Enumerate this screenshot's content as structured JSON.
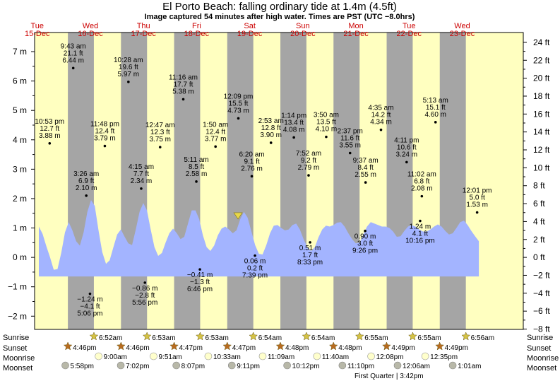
{
  "chart_data": {
    "type": "area",
    "title": "El Porto Beach: falling  ordinary tide at 1.4m (4.5ft)",
    "subtitle": "Image captured 54 minutes after high water. Times are PST (UTC −8.0hrs)",
    "xlim": [
      -0.83,
      8.37
    ],
    "ylim_m": [
      -2.45,
      7.65
    ],
    "ylim_ft": [
      -8,
      24
    ],
    "left_ticks": [
      "−2 m",
      "−1 m",
      "0 m",
      "1 m",
      "2 m",
      "3 m",
      "4 m",
      "5 m",
      "6 m",
      "7 m"
    ],
    "left_tick_values": [
      -2,
      -1,
      0,
      1,
      2,
      3,
      4,
      5,
      6,
      7
    ],
    "right_ticks": [
      "−8 ft",
      "−6 ft",
      "−4 ft",
      "−2 ft",
      "0 ft",
      "2 ft",
      "4 ft",
      "6 ft",
      "8 ft",
      "10 ft",
      "12 ft",
      "14 ft",
      "16 ft",
      "18 ft",
      "20 ft",
      "22 ft",
      "24 ft"
    ],
    "right_tick_values": [
      -8,
      -6,
      -4,
      -2,
      0,
      2,
      4,
      6,
      8,
      10,
      12,
      14,
      16,
      18,
      20,
      22,
      24
    ],
    "days": [
      {
        "name": "Tue",
        "date": "15-Dec"
      },
      {
        "name": "Wed",
        "date": "16-Dec"
      },
      {
        "name": "Thu",
        "date": "17-Dec"
      },
      {
        "name": "Fri",
        "date": "18-Dec"
      },
      {
        "name": "Sat",
        "date": "19-Dec"
      },
      {
        "name": "Sun",
        "date": "20-Dec"
      },
      {
        "name": "Mon",
        "date": "21-Dec"
      },
      {
        "name": "Tue",
        "date": "22-Dec"
      },
      {
        "name": "Wed",
        "date": "23-Dec"
      }
    ],
    "day_night": [
      {
        "sunrise": -1,
        "sunset": -0.2035
      },
      {
        "sunrise": 0.2861,
        "sunset": 0.7958
      },
      {
        "sunrise": 1.2868,
        "sunset": 1.7965
      },
      {
        "sunrise": 2.2868,
        "sunset": 2.7965
      },
      {
        "sunrise": 3.2875,
        "sunset": 3.7972
      },
      {
        "sunrise": 4.2875,
        "sunset": 4.7972
      },
      {
        "sunrise": 5.2882,
        "sunset": 5.7979
      },
      {
        "sunrise": 6.2882,
        "sunset": 6.7979
      },
      {
        "sunrise": 7.2889,
        "sunset": 8.5
      }
    ],
    "tide_range": [
      -0.65,
      7.5
    ],
    "now": {
      "t": 3.0,
      "h": 1.4
    },
    "extremes": [
      {
        "t": -0.547,
        "h": 3.88,
        "time": "10:53 pm",
        "ft": "12.7 ft",
        "m": "3.88 m",
        "kind": "H"
      },
      {
        "t": 0.143,
        "h": 2.1,
        "time": "3:26 am",
        "ft": "6.9 ft",
        "m": "2.10 m",
        "kind": "H"
      },
      {
        "t": -0.103,
        "h": 6.44,
        "time": "9:43 am",
        "ft": "21.1 ft",
        "m": "6.44 m",
        "kind": "H"
      },
      {
        "t": 0.213,
        "h": -1.24,
        "time": "5:06 pm",
        "ft": "−4.1 ft",
        "m": "−1.24 m",
        "kind": "L"
      },
      {
        "t": 0.492,
        "h": 3.79,
        "time": "11:48 pm",
        "ft": "12.4 ft",
        "m": "3.79 m",
        "kind": "H"
      },
      {
        "t": 1.177,
        "h": 2.34,
        "time": "4:15 am",
        "ft": "7.7 ft",
        "m": "2.34 m",
        "kind": "H"
      },
      {
        "t": 0.936,
        "h": 5.97,
        "time": "10:28 am",
        "ft": "19.6 ft",
        "m": "5.97 m",
        "kind": "H"
      },
      {
        "t": 1.247,
        "h": -0.86,
        "time": "5:56 pm",
        "ft": "−2.8 ft",
        "m": "−0.86 m",
        "kind": "L"
      },
      {
        "t": 1.533,
        "h": 3.75,
        "time": "12:47 am",
        "ft": "12.3 ft",
        "m": "3.75 m",
        "kind": "H"
      },
      {
        "t": 2.215,
        "h": 2.58,
        "time": "5:11 am",
        "ft": "8.5 ft",
        "m": "2.58 m",
        "kind": "H"
      },
      {
        "t": 1.969,
        "h": 5.38,
        "time": "11:16 am",
        "ft": "17.7 ft",
        "m": "5.38 m",
        "kind": "H"
      },
      {
        "t": 2.282,
        "h": -0.41,
        "time": "6:46 pm",
        "ft": "−1.3 ft",
        "m": "−0.41 m",
        "kind": "L"
      },
      {
        "t": 2.576,
        "h": 3.77,
        "time": "1:50 am",
        "ft": "12.4 ft",
        "m": "3.77 m",
        "kind": "H"
      },
      {
        "t": 3.259,
        "h": 2.76,
        "time": "6:20 am",
        "ft": "9.1 ft",
        "m": "2.76 m",
        "kind": "H"
      },
      {
        "t": 3.006,
        "h": 4.73,
        "time": "12:09 pm",
        "ft": "15.5 ft",
        "m": "4.73 m",
        "kind": "H"
      },
      {
        "t": 3.319,
        "h": 0.06,
        "time": "7:39 pm",
        "ft": "0.2 ft",
        "m": "0.06 m",
        "kind": "L"
      },
      {
        "t": 3.62,
        "h": 3.9,
        "time": "2:53 am",
        "ft": "12.8 ft",
        "m": "3.90 m",
        "kind": "H"
      },
      {
        "t": 4.328,
        "h": 2.79,
        "time": "7:52 am",
        "ft": "9.2 ft",
        "m": "2.79 m",
        "kind": "H"
      },
      {
        "t": 4.051,
        "h": 4.08,
        "time": "1:14 pm",
        "ft": "13.4 ft",
        "m": "4.08 m",
        "kind": "H"
      },
      {
        "t": 4.356,
        "h": 0.51,
        "time": "8:33 pm",
        "ft": "1.7 ft",
        "m": "0.51 m",
        "kind": "L"
      },
      {
        "t": 4.66,
        "h": 4.1,
        "time": "3:50 am",
        "ft": "13.5 ft",
        "m": "4.10 m",
        "kind": "H"
      },
      {
        "t": 5.401,
        "h": 2.55,
        "time": "9:37 am",
        "ft": "8.4 ft",
        "m": "2.55 m",
        "kind": "H"
      },
      {
        "t": 5.109,
        "h": 3.55,
        "time": "2:37 pm",
        "ft": "11.6 ft",
        "m": "3.55 m",
        "kind": "H"
      },
      {
        "t": 5.393,
        "h": 0.9,
        "time": "9:26 pm",
        "ft": "3.0 ft",
        "m": "0.90 m",
        "kind": "L"
      },
      {
        "t": 5.691,
        "h": 4.34,
        "time": "4:35 am",
        "ft": "14.2 ft",
        "m": "4.34 m",
        "kind": "H"
      },
      {
        "t": 6.46,
        "h": 2.08,
        "time": "11:02 am",
        "ft": "6.8 ft",
        "m": "2.08 m",
        "kind": "H"
      },
      {
        "t": 6.174,
        "h": 3.24,
        "time": "4:11 pm",
        "ft": "10.6 ft",
        "m": "3.24 m",
        "kind": "H"
      },
      {
        "t": 6.428,
        "h": 1.24,
        "time": "10:16 pm",
        "ft": "4.1 ft",
        "m": "1.24 m",
        "kind": "L"
      },
      {
        "t": 6.718,
        "h": 4.6,
        "time": "5:13 am",
        "ft": "15.1 ft",
        "m": "4.60 m",
        "kind": "H"
      },
      {
        "t": 7.501,
        "h": 1.53,
        "time": "12:01 pm",
        "ft": "5.0 ft",
        "m": "1.53 m",
        "kind": "H"
      }
    ],
    "curve_h": [
      1.05,
      0.8,
      0.38,
      0.0,
      -0.42,
      -0.4,
      0.15,
      0.85,
      1.2,
      0.92,
      0.55,
      0.4,
      0.85,
      1.55,
      1.95,
      1.75,
      0.92,
      0.18,
      -0.22,
      -0.1,
      0.35,
      0.78,
      0.95,
      0.7,
      0.48,
      0.42,
      0.95,
      1.55,
      1.85,
      1.6,
      0.95,
      0.35,
      0.05,
      0.15,
      0.5,
      0.82,
      0.98,
      0.82,
      0.62,
      0.7,
      1.15,
      1.6,
      1.6,
      1.3,
      0.75,
      0.35,
      0.22,
      0.4,
      0.75,
      0.98,
      1.05,
      0.95,
      0.82,
      0.92,
      1.3,
      1.55,
      1.35,
      0.88,
      0.42,
      0.12,
      0.1,
      0.42,
      0.82,
      1.08,
      1.1,
      1.0,
      0.92,
      0.95,
      1.1,
      1.15,
      0.95,
      0.62,
      0.35,
      0.22,
      0.35,
      0.68,
      0.95,
      1.08,
      1.05,
      1.1,
      1.18,
      1.2,
      1.05,
      0.82,
      0.62,
      0.48,
      0.5,
      0.78,
      1.05,
      1.2,
      1.15,
      1.1,
      1.05,
      1.05,
      1.0,
      0.88,
      0.7,
      0.72,
      0.9,
      1.05,
      1.1,
      1.05,
      0.95,
      0.88,
      0.88,
      0.95,
      1.05,
      1.12,
      1.05,
      0.9,
      0.78,
      0.82,
      1.0,
      1.2,
      1.25,
      1.1,
      0.9,
      0.72,
      0.55
    ],
    "curve_t0": -0.75,
    "curve_step": 0.0702,
    "sunrise_times": [
      "6:52am",
      "6:53am",
      "6:53am",
      "6:54am",
      "6:54am",
      "6:55am",
      "6:55am",
      "6:56am"
    ],
    "sunset_times": [
      "4:46pm",
      "4:46pm",
      "4:47pm",
      "4:47pm",
      "4:48pm",
      "4:48pm",
      "4:49pm",
      "4:49pm"
    ],
    "moonrise_times": [
      "9:00am",
      "9:51am",
      "10:33am",
      "11:09am",
      "11:40am",
      "12:08pm",
      "12:35pm"
    ],
    "moonset_times": [
      "5:58pm",
      "7:02pm",
      "8:07pm",
      "9:11pm",
      "10:12pm",
      "11:10pm",
      "12:06am",
      "1:01am"
    ],
    "moonrise_t": [
      0.375,
      1.41,
      2.44,
      3.464,
      4.486,
      5.506,
      6.524
    ],
    "moonset_t": [
      -0.251,
      0.793,
      1.838,
      2.883,
      3.925,
      4.965,
      6.004,
      7.042
    ],
    "phase_note": "First Quarter | 3:42pm"
  },
  "rows": {
    "sunrise": "Sunrise",
    "sunset": "Sunset",
    "moonrise": "Moonrise",
    "moonset": "Moonset"
  },
  "colors": {
    "day": "#ffffc0",
    "night": "#a5a5a5",
    "water": "#a3b4ff",
    "day_label": "#cc0000",
    "sun_icon": "#d4c244",
    "sunset_icon": "#b86b1f",
    "moon_rise": "#ffffcc",
    "moon_set": "#b8b8a8"
  }
}
